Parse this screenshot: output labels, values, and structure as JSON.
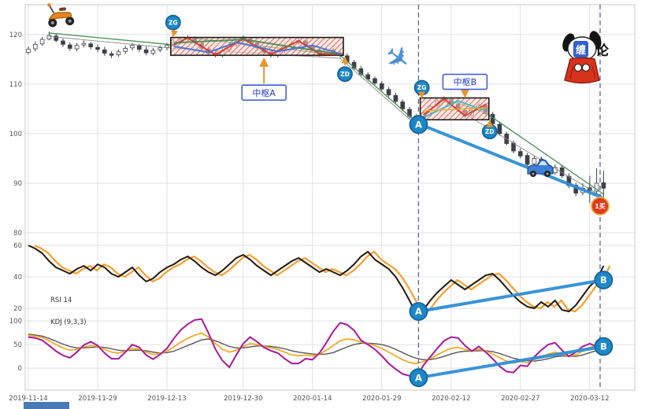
{
  "page": {
    "background": "#ffffff",
    "bottom_bar_color": "#4a7ab5"
  },
  "logo": {
    "char_blue": "缠",
    "char_black": "论"
  },
  "decorations": {
    "plane_glyph": "✈",
    "scooter": "scooter-icon",
    "car": "suv-icon",
    "mascot": "praying-dog-mascot"
  },
  "chart_data": {
    "type": "candlestick_with_indicators",
    "x_tick_labels": [
      "2019-11-14",
      "2019-11-29",
      "2019-12-13",
      "2019-12-30",
      "2020-01-14",
      "2020-01-29",
      "2020-02-12",
      "2020-02-27",
      "2020-03-12"
    ],
    "x_tick_indices": [
      0,
      10,
      20,
      31,
      41,
      51,
      61,
      71,
      81
    ],
    "num_candles": 84,
    "dashed_vlines": {
      "color": "#5a6880",
      "indices": [
        56.3,
        82.5
      ]
    },
    "marker_style": {
      "circle_fill": "#1e88c7",
      "circle_stroke": "#13639c",
      "buy_fill": "#e0391e",
      "buy_ring": "#e8b23a"
    },
    "price_panel": {
      "yticks": [
        120,
        110,
        100,
        90,
        80
      ],
      "ylim": [
        80,
        126
      ],
      "open": [
        116.4,
        117.1,
        118.1,
        119.1,
        119.7,
        118.7,
        117.9,
        117.1,
        117.9,
        118.1,
        117.4,
        116.9,
        116.1,
        115.9,
        116.6,
        117.3,
        117.7,
        116.9,
        116.2,
        116.9,
        117.4,
        117.9,
        118.5,
        119.1,
        119.2,
        118.2,
        117.1,
        116.3,
        115.8,
        116.9,
        117.9,
        118.7,
        119.1,
        118.3,
        117.2,
        116.5,
        115.8,
        116.7,
        117.5,
        118.3,
        118.7,
        117.7,
        116.9,
        116.1,
        116.9,
        116.3,
        115.7,
        114.4,
        113.1,
        111.9,
        111.1,
        110.1,
        108.9,
        107.7,
        106.4,
        104.9,
        103.6,
        102.6,
        104.3,
        105.6,
        106.7,
        106.9,
        105.9,
        104.7,
        103.7,
        104.7,
        105.7,
        103.9,
        101.9,
        99.9,
        98.1,
        96.4,
        95.6,
        93.9,
        94.9,
        93.6,
        92.1,
        93.1,
        91.4,
        89.6,
        88.1,
        89.1,
        88.4,
        90.1
      ],
      "high": [
        117.6,
        118.6,
        119.5,
        120.6,
        120.2,
        119.2,
        118.4,
        118.3,
        118.8,
        118.5,
        118.0,
        117.5,
        116.6,
        117.0,
        117.7,
        118.3,
        118.1,
        117.6,
        117.3,
        117.8,
        118.3,
        118.9,
        119.5,
        119.8,
        119.6,
        118.7,
        117.6,
        116.8,
        117.3,
        118.3,
        119.1,
        119.8,
        119.5,
        118.8,
        117.7,
        117.0,
        117.1,
        117.9,
        118.7,
        119.3,
        119.0,
        118.2,
        117.4,
        117.3,
        117.3,
        116.8,
        116.2,
        114.9,
        113.7,
        112.4,
        111.5,
        110.6,
        109.4,
        108.2,
        106.9,
        105.4,
        104.0,
        104.7,
        105.9,
        107.0,
        107.5,
        107.3,
        106.3,
        105.2,
        105.1,
        106.3,
        106.2,
        104.4,
        102.4,
        100.4,
        98.6,
        97.0,
        96.1,
        95.6,
        95.4,
        94.1,
        93.8,
        93.6,
        92.0,
        90.1,
        90.0,
        91.5,
        93.0,
        92.5
      ],
      "low": [
        116.0,
        116.6,
        117.7,
        118.8,
        118.4,
        117.5,
        116.7,
        116.6,
        117.4,
        117.0,
        116.4,
        115.7,
        115.2,
        115.5,
        116.1,
        116.8,
        116.5,
        115.8,
        115.8,
        116.4,
        116.8,
        117.4,
        118.1,
        118.6,
        117.9,
        116.8,
        115.7,
        115.4,
        115.4,
        116.4,
        117.5,
        118.2,
        118.0,
        116.9,
        116.0,
        115.4,
        115.4,
        116.2,
        117.0,
        117.9,
        117.4,
        116.4,
        115.6,
        115.7,
        115.8,
        115.3,
        114.1,
        112.8,
        111.6,
        110.6,
        109.8,
        108.6,
        107.4,
        106.1,
        104.5,
        103.0,
        102.0,
        102.2,
        103.9,
        105.2,
        106.3,
        105.6,
        104.4,
        103.2,
        103.3,
        104.3,
        103.6,
        101.6,
        99.6,
        97.6,
        96.0,
        95.0,
        93.4,
        93.5,
        93.1,
        91.6,
        91.7,
        91.1,
        89.0,
        87.4,
        87.6,
        86.0,
        87.5,
        85.8
      ],
      "close": [
        117.0,
        118.0,
        119.0,
        119.8,
        118.8,
        118.0,
        117.2,
        117.8,
        118.2,
        117.5,
        117.0,
        116.2,
        115.8,
        116.5,
        117.2,
        117.8,
        117.0,
        116.3,
        116.8,
        117.3,
        117.8,
        118.4,
        119.0,
        119.3,
        118.3,
        117.2,
        116.2,
        115.9,
        116.8,
        117.8,
        118.6,
        119.2,
        118.4,
        117.3,
        116.4,
        115.9,
        116.6,
        117.4,
        118.2,
        118.8,
        117.8,
        116.8,
        116.0,
        116.8,
        116.2,
        115.8,
        114.5,
        113.2,
        112.0,
        111.0,
        110.2,
        109.0,
        107.8,
        106.5,
        105.0,
        103.5,
        102.5,
        104.2,
        105.5,
        106.6,
        107.0,
        106.0,
        104.8,
        103.6,
        104.6,
        105.8,
        104.0,
        102.0,
        100.0,
        98.0,
        96.5,
        95.5,
        93.8,
        95.0,
        93.5,
        92.0,
        93.2,
        91.5,
        89.5,
        88.0,
        89.0,
        88.5,
        90.0,
        89.0
      ],
      "trend_lines": [
        {
          "color": "#3d8b4f",
          "width": 1.4,
          "points": [
            [
              3,
              120.3
            ],
            [
              21,
              117.9
            ],
            [
              23,
              119.4
            ],
            [
              45,
              115.8
            ],
            [
              56,
              102.3
            ],
            [
              60,
              107.1
            ],
            [
              66,
              104.2
            ],
            [
              83,
              87.8
            ]
          ]
        },
        {
          "color": "#8a8a8a",
          "width": 1,
          "points": [
            [
              3,
              119.6
            ],
            [
              21,
              117.2
            ],
            [
              45,
              115.2
            ],
            [
              56,
              101.7
            ],
            [
              60,
              106.5
            ],
            [
              83,
              87.1
            ]
          ]
        }
      ],
      "pivot_boxes": [
        {
          "label": "中枢A",
          "start_idx": 21,
          "end_idx": 45,
          "top": 119.4,
          "bottom": 115.8,
          "zg_label": "ZG",
          "zd_label": "ZD",
          "label_pos": "below",
          "label_center_idx": 34,
          "inner_lines": [
            {
              "color": "#d93025",
              "width": 2,
              "points": [
                [
                  21,
                  117.9
                ],
                [
                  23,
                  119.3
                ],
                [
                  27,
                  115.9
                ],
                [
                  31,
                  119.1
                ],
                [
                  35,
                  116.0
                ],
                [
                  39,
                  118.7
                ],
                [
                  42,
                  116.1
                ],
                [
                  45,
                  115.9
                ]
              ]
            },
            {
              "color": "#3d8b4f",
              "width": 2,
              "points": [
                [
                  21,
                  118.3
                ],
                [
                  31,
                  119.0
                ],
                [
                  45,
                  116.0
                ]
              ]
            },
            {
              "color": "#3a6fd8",
              "width": 2,
              "points": [
                [
                  21,
                  117.6
                ],
                [
                  26,
                  116.4
                ],
                [
                  30,
                  118.4
                ],
                [
                  36,
                  116.6
                ],
                [
                  41,
                  117.8
                ],
                [
                  45,
                  116.1
                ]
              ]
            }
          ]
        },
        {
          "label": "中枢B",
          "start_idx": 57,
          "end_idx": 66,
          "top": 107.2,
          "bottom": 102.8,
          "zg_label": "ZG",
          "zd_label": "ZD",
          "label_pos": "above",
          "label_center_idx": 63,
          "inner_lines": [
            {
              "color": "#d93025",
              "width": 2,
              "points": [
                [
                  57,
                  103.8
                ],
                [
                  60,
                  107.0
                ],
                [
                  63,
                  103.6
                ],
                [
                  66,
                  105.9
                ]
              ]
            },
            {
              "color": "#33b8c4",
              "width": 2,
              "points": [
                [
                  57,
                  103.2
                ],
                [
                  62,
                  106.6
                ],
                [
                  66,
                  104.6
                ]
              ]
            },
            {
              "color": "#f5a623",
              "width": 1.5,
              "points": [
                [
                  57,
                  104.6
                ],
                [
                  66,
                  105.2
                ]
              ]
            }
          ]
        }
      ],
      "buy_line": {
        "color": "#2e8fd5",
        "width": 4,
        "a_idx": 56.3,
        "a_val": 102.0,
        "end_idx": 82.5,
        "end_val": 87.3,
        "a_label": "A",
        "end_label": "1买"
      }
    },
    "rsi_panel": {
      "label": "RSI 14",
      "yticks": [
        60,
        40,
        20
      ],
      "line_color": "#26180a",
      "signal_color": "#f59a23",
      "values": [
        60,
        58,
        55,
        50,
        46,
        44,
        42,
        45,
        47,
        44,
        48,
        46,
        42,
        40,
        43,
        46,
        41,
        37,
        39,
        43,
        46,
        48,
        51,
        53,
        50,
        46,
        43,
        41,
        44,
        48,
        52,
        54,
        51,
        47,
        44,
        41,
        44,
        47,
        50,
        52,
        49,
        46,
        43,
        45,
        43,
        41,
        44,
        48,
        53,
        56,
        51,
        48,
        45,
        40,
        33,
        25,
        16,
        19,
        25,
        30,
        34,
        38,
        35,
        32,
        35,
        38,
        41,
        42,
        38,
        33,
        28,
        24,
        21,
        20,
        24,
        21,
        25,
        19,
        18,
        22,
        28,
        34,
        38,
        47
      ],
      "ab_line": {
        "color": "#2e8fd5",
        "width": 4,
        "a_idx": 56.3,
        "a_val": 18,
        "b_idx": 83,
        "b_val": 38,
        "a_label": "A",
        "b_label": "B"
      }
    },
    "kdj_panel": {
      "label": "KDJ (9,3,3)",
      "yticks": [
        100,
        50,
        0
      ],
      "k_color": "#f5a623",
      "d_color": "#555555",
      "j_color": "#a8189b",
      "k": [
        70,
        68,
        65,
        58,
        50,
        43,
        38,
        40,
        45,
        48,
        46,
        40,
        34,
        32,
        36,
        42,
        40,
        34,
        29,
        31,
        36,
        45,
        55,
        63,
        70,
        74,
        66,
        52,
        40,
        34,
        38,
        46,
        52,
        50,
        46,
        43,
        40,
        34,
        28,
        26,
        28,
        26,
        30,
        38,
        48,
        58,
        62,
        60,
        55,
        52,
        48,
        42,
        34,
        26,
        18,
        12,
        10,
        14,
        20,
        28,
        36,
        42,
        44,
        40,
        36,
        40,
        36,
        30,
        22,
        15,
        11,
        14,
        12,
        18,
        24,
        30,
        34,
        30,
        25,
        28,
        36,
        44,
        48,
        50
      ],
      "d": [
        72,
        70,
        68,
        63,
        57,
        51,
        46,
        43,
        43,
        44,
        45,
        44,
        41,
        38,
        37,
        38,
        38,
        37,
        34,
        32,
        33,
        36,
        42,
        48,
        54,
        60,
        62,
        58,
        52,
        46,
        43,
        43,
        45,
        47,
        47,
        46,
        44,
        41,
        37,
        34,
        32,
        30,
        29,
        30,
        33,
        39,
        45,
        50,
        53,
        53,
        52,
        50,
        46,
        40,
        33,
        26,
        21,
        18,
        18,
        21,
        25,
        30,
        34,
        36,
        36,
        37,
        37,
        35,
        31,
        26,
        21,
        18,
        16,
        15,
        17,
        20,
        24,
        26,
        25,
        25,
        28,
        33,
        37,
        40
      ],
      "j": [
        66,
        64,
        59,
        48,
        36,
        27,
        22,
        34,
        49,
        56,
        48,
        32,
        20,
        20,
        34,
        50,
        44,
        28,
        19,
        29,
        42,
        63,
        81,
        93,
        102,
        104,
        74,
        40,
        16,
        2,
        28,
        52,
        66,
        56,
        44,
        37,
        32,
        20,
        10,
        10,
        20,
        18,
        32,
        54,
        78,
        96,
        92,
        80,
        59,
        50,
        40,
        26,
        10,
        -2,
        -12,
        -16,
        -20,
        6,
        24,
        42,
        58,
        66,
        64,
        48,
        36,
        46,
        34,
        20,
        4,
        -7,
        -9,
        6,
        4,
        24,
        38,
        50,
        54,
        38,
        25,
        34,
        46,
        52,
        46,
        55
      ],
      "ab_line": {
        "color": "#2e8fd5",
        "width": 4,
        "a_idx": 56.3,
        "a_val": -20,
        "b_idx": 83,
        "b_val": 46,
        "a_label": "A",
        "b_label": "B"
      }
    }
  }
}
